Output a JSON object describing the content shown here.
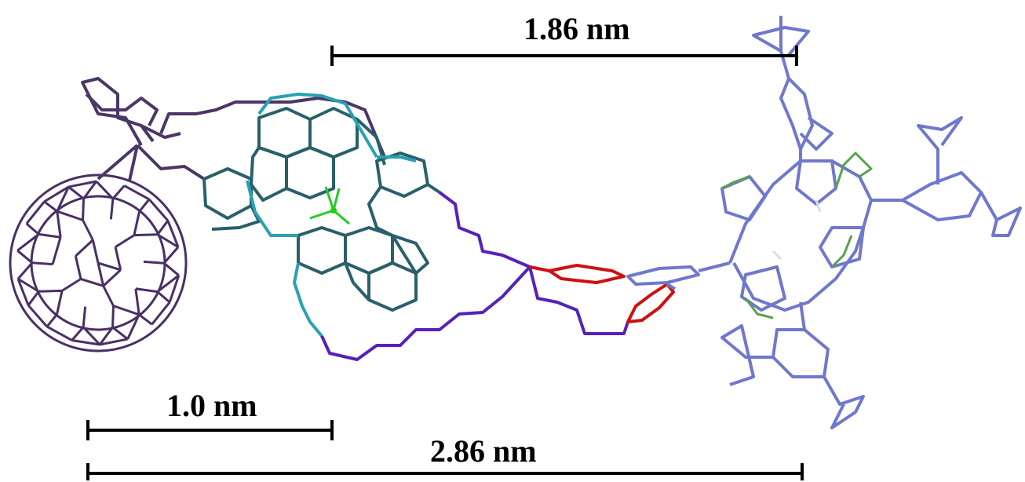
{
  "measurements": [
    {
      "id": "top",
      "label": "1.86 nm"
    },
    {
      "id": "left",
      "label": "1.0 nm"
    },
    {
      "id": "bottom",
      "label": "2.86 nm"
    }
  ],
  "colors": {
    "fullerene": "#4a2f66",
    "linker_dark": "#4b3666",
    "cu_complex": "#29606a",
    "cu_complex_light": "#2aa0b5",
    "copper": "#22cc22",
    "chain": "#5522bb",
    "phenyl_red": "#cc1111",
    "porphyrin": "#6f78cc",
    "pyrrole_green": "#5aa050",
    "scale_bar": "#000000"
  }
}
